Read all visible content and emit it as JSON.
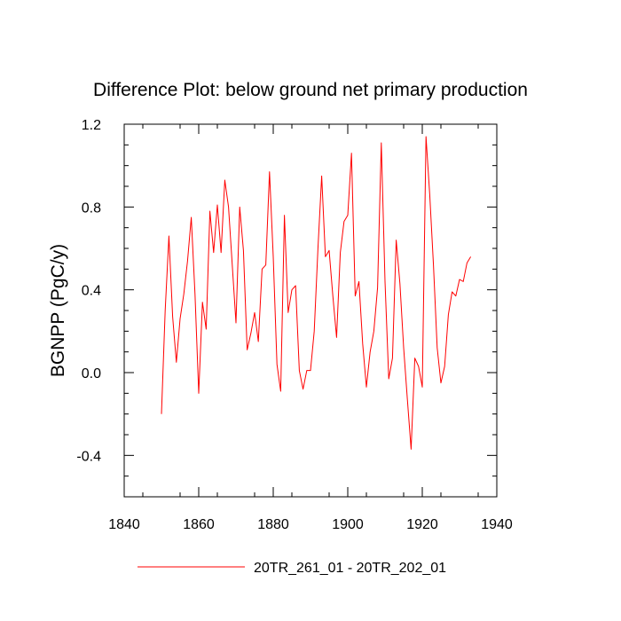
{
  "chart_data": {
    "type": "line",
    "title": "Difference Plot: below ground net primary production",
    "xlabel": "",
    "ylabel": "BGNPP  (PgC/y)",
    "xlim": [
      1840,
      1940
    ],
    "ylim": [
      -0.6,
      1.2
    ],
    "x_ticks": [
      1840,
      1860,
      1880,
      1900,
      1920,
      1940
    ],
    "x_tick_labels": [
      "1840",
      "1860",
      "1880",
      "1900",
      "1920",
      "1940"
    ],
    "y_ticks": [
      -0.4,
      0.0,
      0.4,
      0.8,
      1.2
    ],
    "y_tick_labels": [
      "-0.4",
      "0.0",
      "0.4",
      "0.8",
      "1.2"
    ],
    "legend_position": "bottom-center",
    "series": [
      {
        "name": "20TR_261_01 - 20TR_202_01",
        "color": "#ff0000",
        "x": [
          1850,
          1851,
          1852,
          1853,
          1854,
          1855,
          1856,
          1857,
          1858,
          1859,
          1860,
          1861,
          1862,
          1863,
          1864,
          1865,
          1866,
          1867,
          1868,
          1869,
          1870,
          1871,
          1872,
          1873,
          1874,
          1875,
          1876,
          1877,
          1878,
          1879,
          1880,
          1881,
          1882,
          1883,
          1884,
          1885,
          1886,
          1887,
          1888,
          1889,
          1890,
          1891,
          1892,
          1893,
          1894,
          1895,
          1896,
          1897,
          1898,
          1899,
          1900,
          1901,
          1902,
          1903,
          1904,
          1905,
          1906,
          1907,
          1908,
          1909,
          1910,
          1911,
          1912,
          1913,
          1914,
          1915,
          1916,
          1917,
          1918,
          1919,
          1920,
          1921,
          1922,
          1923,
          1924,
          1925,
          1926,
          1927,
          1928,
          1929,
          1930,
          1931,
          1932,
          1933
        ],
        "values": [
          -0.2,
          0.3,
          0.66,
          0.27,
          0.05,
          0.26,
          0.38,
          0.54,
          0.75,
          0.38,
          -0.1,
          0.34,
          0.21,
          0.78,
          0.58,
          0.81,
          0.58,
          0.93,
          0.8,
          0.52,
          0.24,
          0.8,
          0.59,
          0.11,
          0.19,
          0.29,
          0.15,
          0.5,
          0.52,
          0.97,
          0.56,
          0.04,
          -0.09,
          0.76,
          0.29,
          0.4,
          0.42,
          0.01,
          -0.08,
          0.01,
          0.01,
          0.2,
          0.6,
          0.95,
          0.56,
          0.59,
          0.37,
          0.17,
          0.58,
          0.73,
          0.76,
          1.06,
          0.37,
          0.44,
          0.14,
          -0.07,
          0.1,
          0.2,
          0.41,
          1.11,
          0.44,
          -0.03,
          0.07,
          0.64,
          0.43,
          0.12,
          -0.13,
          -0.37,
          0.07,
          0.03,
          -0.07,
          1.14,
          0.86,
          0.52,
          0.12,
          -0.05,
          0.03,
          0.28,
          0.39,
          0.37,
          0.45,
          0.44,
          0.53,
          0.56
        ]
      }
    ]
  }
}
